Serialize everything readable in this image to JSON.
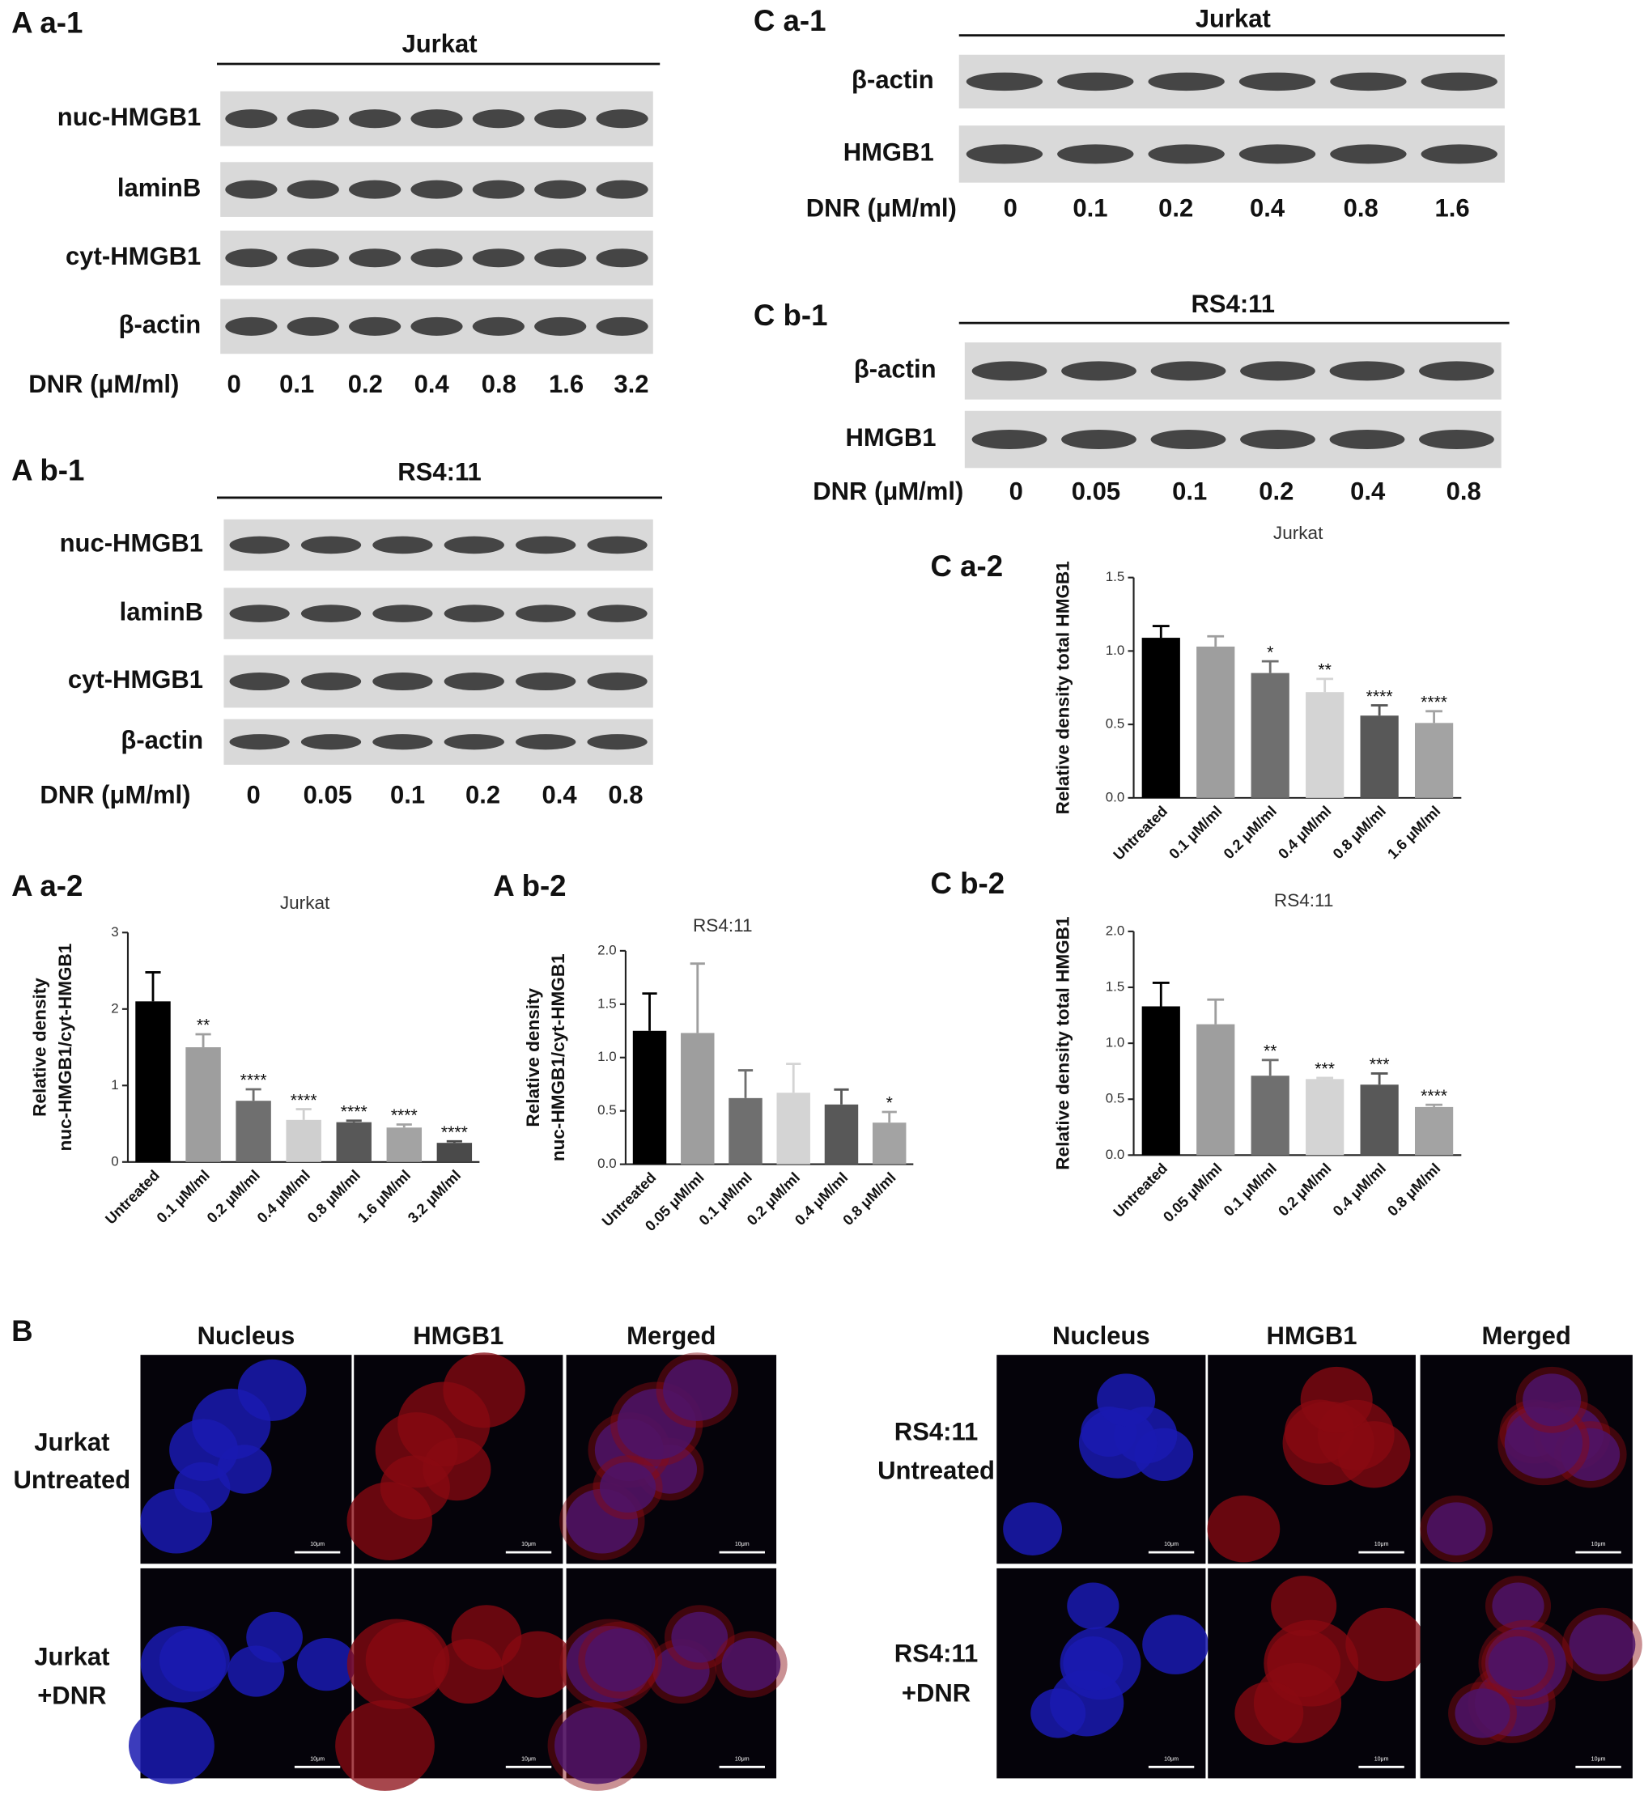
{
  "blots": [
    {
      "panel": "A a-1",
      "cell_line": "Jurkat",
      "rows": [
        "nuc-HMGB1",
        "laminB",
        "cyt-HMGB1",
        "β-actin"
      ],
      "dose_label": "DNR (μM/ml)",
      "doses": [
        "0",
        "0.1",
        "0.2",
        "0.4",
        "0.8",
        "1.6",
        "3.2"
      ]
    },
    {
      "panel": "A b-1",
      "cell_line": "RS4:11",
      "rows": [
        "nuc-HMGB1",
        "laminB",
        "cyt-HMGB1",
        "β-actin"
      ],
      "dose_label": "DNR (μM/ml)",
      "doses": [
        "0",
        "0.05",
        "0.1",
        "0.2",
        "0.4",
        "0.8"
      ]
    },
    {
      "panel": "C a-1",
      "cell_line": "Jurkat",
      "rows": [
        "β-actin",
        "HMGB1"
      ],
      "dose_label": "DNR (μM/ml)",
      "doses": [
        "0",
        "0.1",
        "0.2",
        "0.4",
        "0.8",
        "1.6"
      ]
    },
    {
      "panel": "C b-1",
      "cell_line": "RS4:11",
      "rows": [
        "β-actin",
        "HMGB1"
      ],
      "dose_label": "DNR (μM/ml)",
      "doses": [
        "0",
        "0.05",
        "0.1",
        "0.2",
        "0.4",
        "0.8"
      ]
    }
  ],
  "chart_data": [
    {
      "type": "bar",
      "panel": "A a-2",
      "title": "Jurkat",
      "y_label": [
        "Relative density",
        "nuc-HMGB1/cyt-HMGB1"
      ],
      "categories": [
        "Untreated",
        "0.1 μM/ml",
        "0.2 μM/ml",
        "0.4 μM/ml",
        "0.8 μM/ml",
        "1.6 μM/ml",
        "3.2 μM/ml"
      ],
      "values": [
        2.1,
        1.5,
        0.8,
        0.55,
        0.52,
        0.45,
        0.25
      ],
      "errors": [
        0.38,
        0.17,
        0.15,
        0.14,
        0.02,
        0.04,
        0.02
      ],
      "annotations": [
        null,
        "**",
        "****",
        "****",
        "****",
        "****",
        "****"
      ],
      "colors": [
        "#000000",
        "#9e9e9e",
        "#6f6f6f",
        "#cfcfcf",
        "#585858",
        "#a3a3a3",
        "#4a4a4a"
      ],
      "ylim": [
        0,
        3
      ],
      "yticks": [
        0,
        1,
        2,
        3
      ]
    },
    {
      "type": "bar",
      "panel": "A b-2",
      "title": "RS4:11",
      "y_label": [
        "Relative density",
        "nuc-HMGB1/cyt-HMGB1"
      ],
      "categories": [
        "Untreated",
        "0.05 μM/ml",
        "0.1 μM/ml",
        "0.2 μM/ml",
        "0.4 μM/ml",
        "0.8 μM/ml"
      ],
      "values": [
        1.25,
        1.23,
        0.62,
        0.67,
        0.56,
        0.39
      ],
      "errors": [
        0.35,
        0.65,
        0.26,
        0.27,
        0.14,
        0.1
      ],
      "annotations": [
        null,
        null,
        null,
        null,
        null,
        "*"
      ],
      "colors": [
        "#000000",
        "#9e9e9e",
        "#6f6f6f",
        "#d4d4d4",
        "#585858",
        "#a3a3a3"
      ],
      "ylim": [
        0,
        2
      ],
      "yticks": [
        {
          "value": 0,
          "label": "0.0"
        },
        0.5,
        {
          "value": 1,
          "label": "1.0"
        },
        1.5,
        {
          "value": 2,
          "label": "2.0"
        }
      ]
    },
    {
      "type": "bar",
      "panel": "C a-2",
      "title": "Jurkat",
      "y_label": [
        "Relative density total HMGB1"
      ],
      "categories": [
        "Untreated",
        "0.1 μM/ml",
        "0.2 μM/ml",
        "0.4 μM/ml",
        "0.8 μM/ml",
        "1.6 μM/ml"
      ],
      "values": [
        1.09,
        1.03,
        0.85,
        0.72,
        0.56,
        0.51
      ],
      "errors": [
        0.08,
        0.07,
        0.08,
        0.09,
        0.07,
        0.08
      ],
      "annotations": [
        null,
        null,
        "*",
        "**",
        "****",
        "****"
      ],
      "colors": [
        "#000000",
        "#9e9e9e",
        "#6f6f6f",
        "#d4d4d4",
        "#585858",
        "#a3a3a3"
      ],
      "ylim": [
        0,
        1.5
      ],
      "yticks": [
        {
          "value": 0,
          "label": "0.0"
        },
        0.5,
        {
          "value": 1,
          "label": "1.0"
        },
        1.5
      ]
    },
    {
      "type": "bar",
      "panel": "C b-2",
      "title": "RS4:11",
      "y_label": [
        "Relative density total HMGB1"
      ],
      "categories": [
        "Untreated",
        "0.05 μM/ml",
        "0.1 μM/ml",
        "0.2 μM/ml",
        "0.4 μM/ml",
        "0.8 μM/ml"
      ],
      "values": [
        1.33,
        1.17,
        0.71,
        0.68,
        0.63,
        0.43
      ],
      "errors": [
        0.21,
        0.22,
        0.14,
        0.01,
        0.1,
        0.02
      ],
      "annotations": [
        null,
        null,
        "**",
        "***",
        "***",
        "****"
      ],
      "colors": [
        "#000000",
        "#9e9e9e",
        "#6f6f6f",
        "#d4d4d4",
        "#585858",
        "#a3a3a3"
      ],
      "ylim": [
        0,
        2
      ],
      "yticks": [
        {
          "value": 0,
          "label": "0.0"
        },
        0.5,
        {
          "value": 1,
          "label": "1.0"
        },
        1.5,
        {
          "value": 2,
          "label": "2.0"
        }
      ]
    }
  ],
  "microscopy": {
    "panel": "B",
    "columns": [
      "Nucleus",
      "HMGB1",
      "Merged"
    ],
    "scale_bar": "10μm",
    "groups": [
      {
        "rows": [
          [
            "Jurkat",
            "Untreated"
          ],
          [
            "Jurkat",
            "+DNR"
          ]
        ]
      },
      {
        "rows": [
          [
            "RS4:11",
            "Untreated"
          ],
          [
            "RS4:11",
            "+DNR"
          ]
        ]
      }
    ]
  }
}
